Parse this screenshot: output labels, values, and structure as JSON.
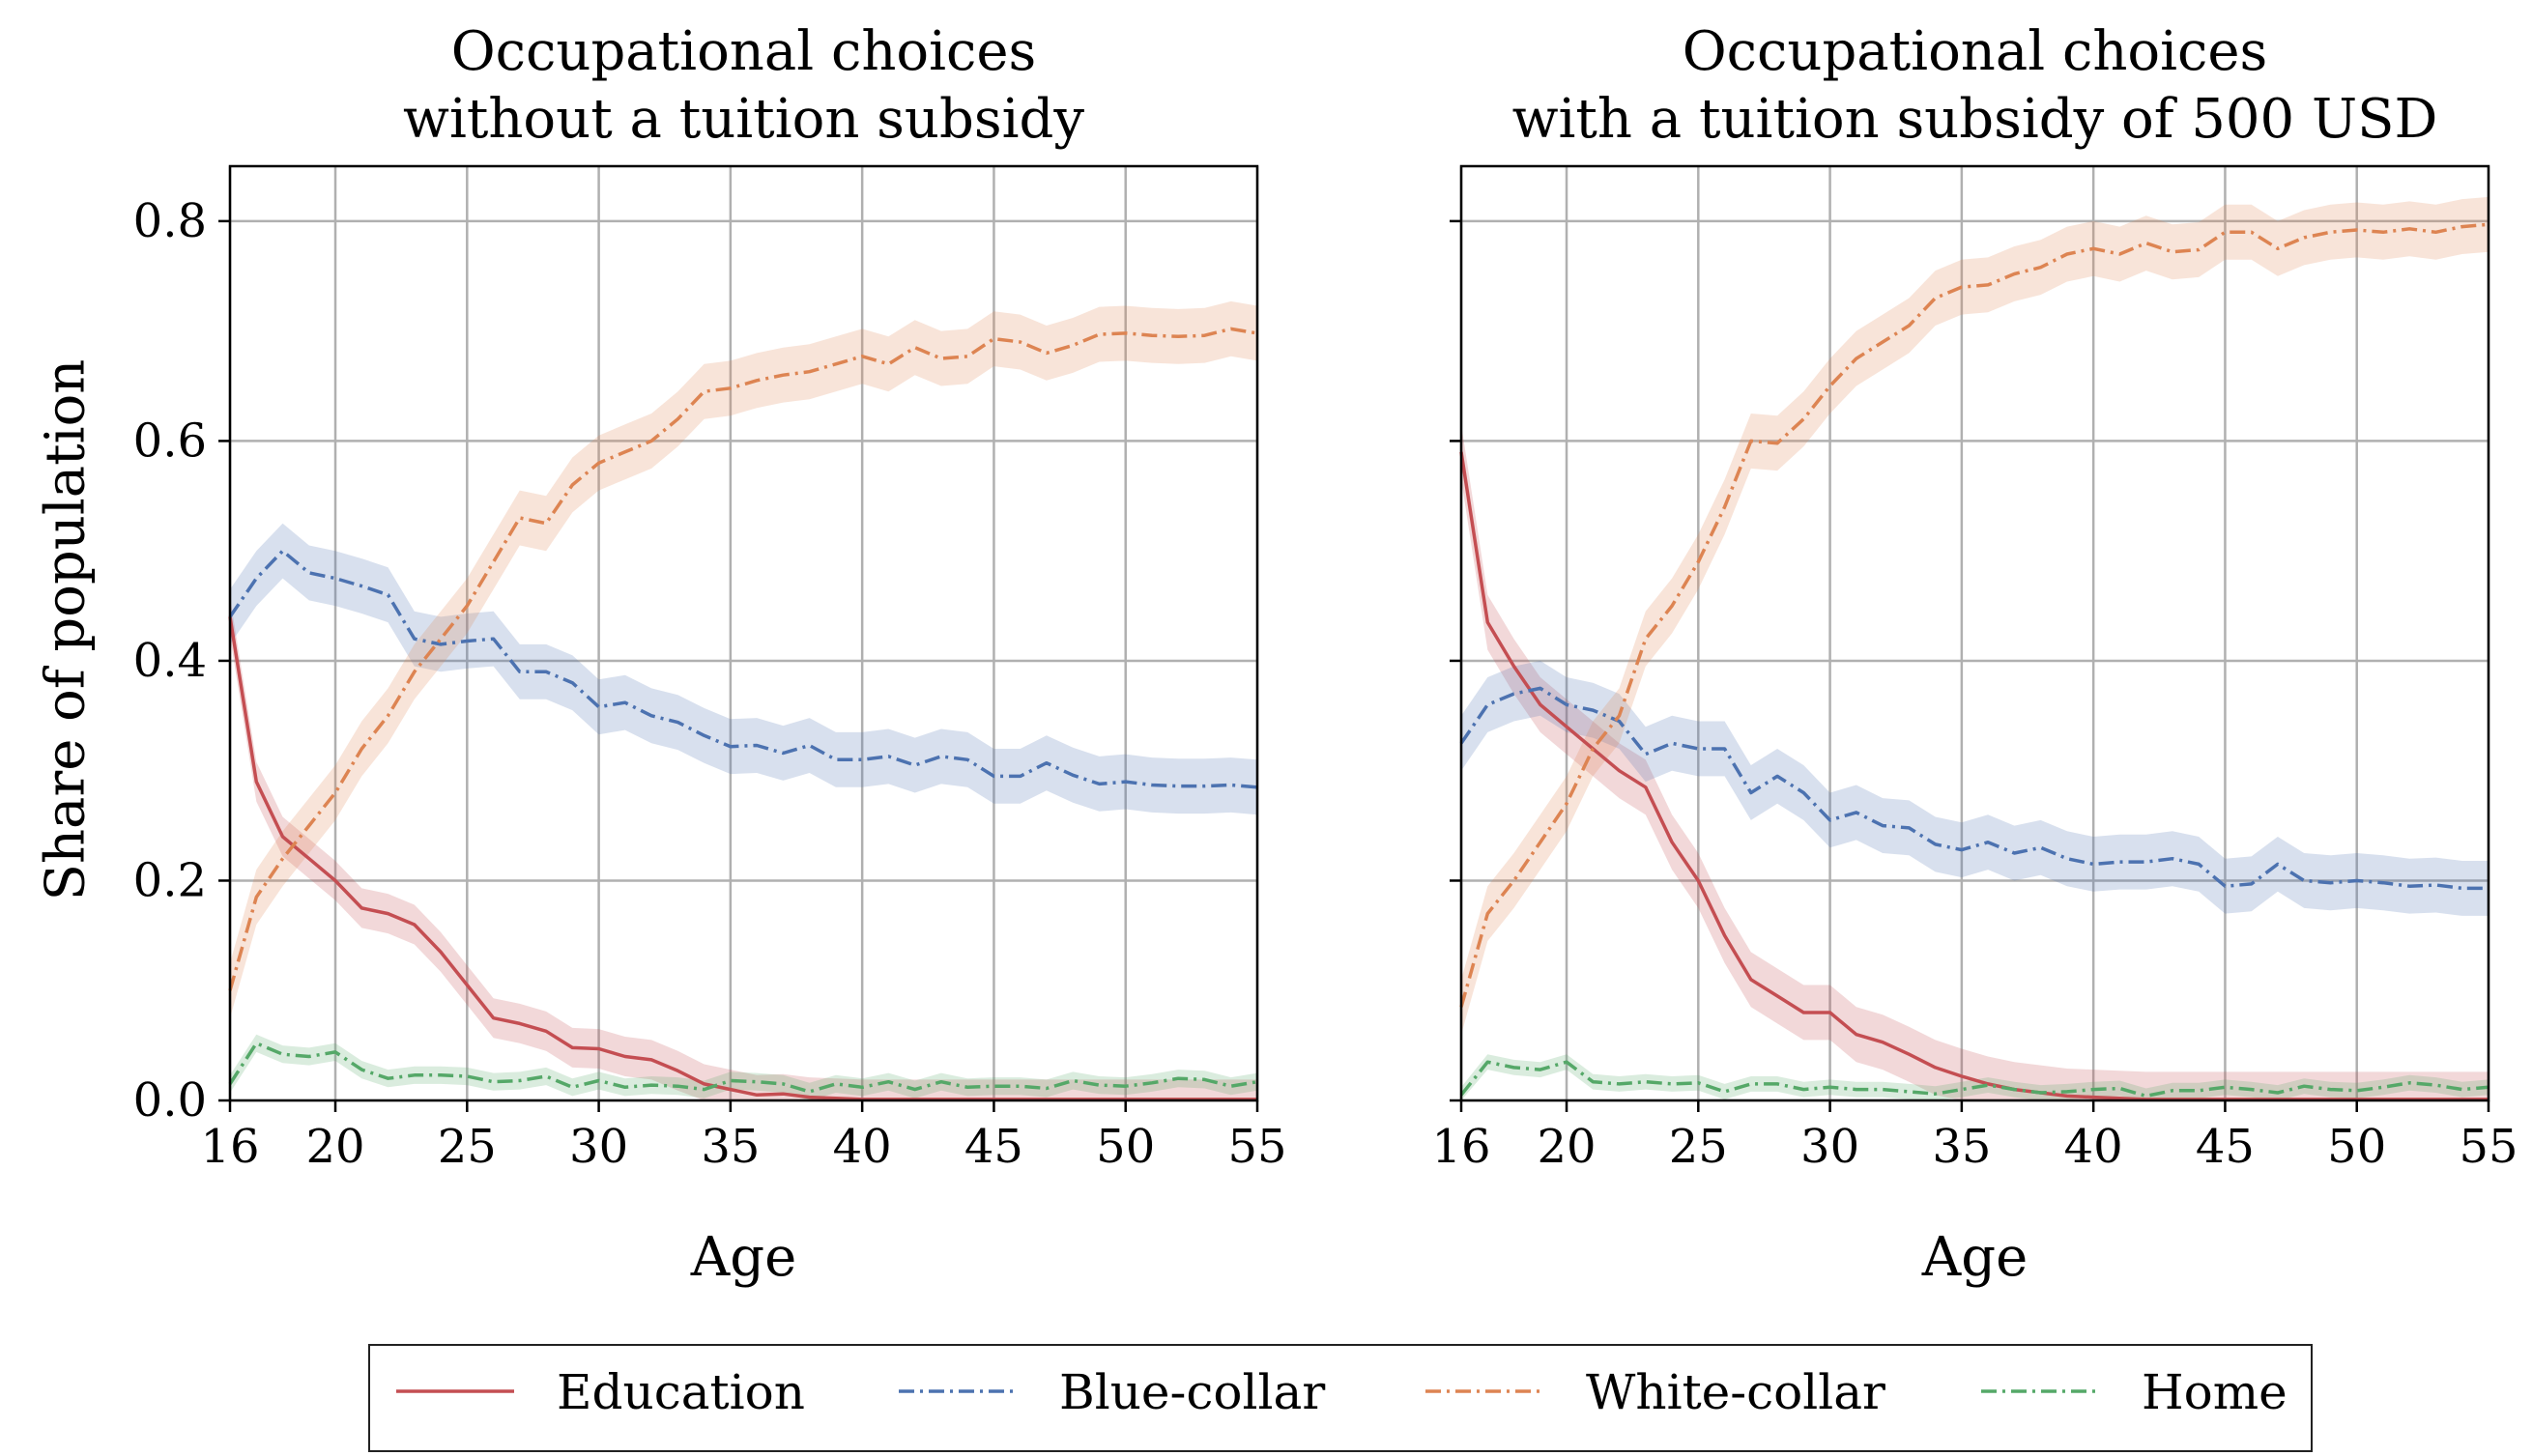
{
  "chart_data": [
    {
      "type": "line",
      "title": "Occupational choices\nwithout a tuition subsidy",
      "xlabel": "Age",
      "ylabel": "Share of population",
      "xlim": [
        16,
        55
      ],
      "ylim": [
        0,
        0.85
      ],
      "xticks": [
        16,
        20,
        25,
        30,
        35,
        40,
        45,
        50,
        55
      ],
      "yticks": [
        0.0,
        0.2,
        0.4,
        0.6,
        0.8
      ],
      "grid": true,
      "x": [
        16,
        17,
        18,
        19,
        20,
        21,
        22,
        23,
        24,
        25,
        26,
        27,
        28,
        29,
        30,
        31,
        32,
        33,
        34,
        35,
        36,
        37,
        38,
        39,
        40,
        41,
        42,
        43,
        44,
        45,
        46,
        47,
        48,
        49,
        50,
        51,
        52,
        53,
        54,
        55
      ],
      "series": [
        {
          "name": "Education",
          "color": "#c44e52",
          "style": "solid",
          "values": [
            0.44,
            0.29,
            0.24,
            0.22,
            0.2,
            0.175,
            0.17,
            0.16,
            0.135,
            0.105,
            0.075,
            0.07,
            0.063,
            0.048,
            0.047,
            0.04,
            0.037,
            0.027,
            0.015,
            0.01,
            0.005,
            0.006,
            0.003,
            0.002,
            0.001,
            0.001,
            0.001,
            0.001,
            0.001,
            0.001,
            0.001,
            0.001,
            0.001,
            0.001,
            0.001,
            0.001,
            0.001,
            0.001,
            0.001,
            0.001
          ],
          "band": 0.018
        },
        {
          "name": "Blue-collar",
          "color": "#4c72b0",
          "style": "dashdot",
          "values": [
            0.44,
            0.475,
            0.5,
            0.48,
            0.475,
            0.468,
            0.46,
            0.42,
            0.415,
            0.418,
            0.42,
            0.39,
            0.39,
            0.38,
            0.358,
            0.362,
            0.35,
            0.344,
            0.332,
            0.322,
            0.323,
            0.316,
            0.323,
            0.31,
            0.31,
            0.313,
            0.305,
            0.313,
            0.31,
            0.295,
            0.295,
            0.307,
            0.296,
            0.288,
            0.29,
            0.287,
            0.286,
            0.286,
            0.287,
            0.285
          ],
          "band": 0.025
        },
        {
          "name": "White-collar",
          "color": "#dd8452",
          "style": "dashdot",
          "values": [
            0.1,
            0.185,
            0.22,
            0.25,
            0.28,
            0.32,
            0.35,
            0.39,
            0.42,
            0.45,
            0.49,
            0.53,
            0.525,
            0.56,
            0.58,
            0.59,
            0.6,
            0.62,
            0.645,
            0.648,
            0.655,
            0.66,
            0.663,
            0.67,
            0.677,
            0.67,
            0.685,
            0.675,
            0.677,
            0.693,
            0.69,
            0.68,
            0.687,
            0.697,
            0.698,
            0.696,
            0.695,
            0.696,
            0.702,
            0.698
          ],
          "band": 0.025
        },
        {
          "name": "Home",
          "color": "#55a868",
          "style": "dashdot",
          "values": [
            0.015,
            0.052,
            0.042,
            0.04,
            0.044,
            0.028,
            0.02,
            0.023,
            0.023,
            0.022,
            0.017,
            0.018,
            0.022,
            0.012,
            0.018,
            0.012,
            0.014,
            0.013,
            0.01,
            0.018,
            0.017,
            0.015,
            0.008,
            0.015,
            0.012,
            0.017,
            0.01,
            0.017,
            0.012,
            0.013,
            0.013,
            0.011,
            0.018,
            0.014,
            0.013,
            0.016,
            0.02,
            0.019,
            0.013,
            0.017
          ],
          "band": 0.008
        }
      ]
    },
    {
      "type": "line",
      "title": "Occupational choices\nwith a tuition subsidy of 500 USD",
      "xlabel": "Age",
      "ylabel": "",
      "xlim": [
        16,
        55
      ],
      "ylim": [
        0,
        0.85
      ],
      "xticks": [
        16,
        20,
        25,
        30,
        35,
        40,
        45,
        50,
        55
      ],
      "yticks": [
        0.0,
        0.2,
        0.4,
        0.6,
        0.8
      ],
      "grid": true,
      "x": [
        16,
        17,
        18,
        19,
        20,
        21,
        22,
        23,
        24,
        25,
        26,
        27,
        28,
        29,
        30,
        31,
        32,
        33,
        34,
        35,
        36,
        37,
        38,
        39,
        40,
        41,
        42,
        43,
        44,
        45,
        46,
        47,
        48,
        49,
        50,
        51,
        52,
        53,
        54,
        55
      ],
      "series": [
        {
          "name": "Education",
          "color": "#c44e52",
          "style": "solid",
          "values": [
            0.59,
            0.435,
            0.395,
            0.36,
            0.34,
            0.32,
            0.3,
            0.285,
            0.235,
            0.2,
            0.15,
            0.11,
            0.095,
            0.08,
            0.08,
            0.06,
            0.053,
            0.042,
            0.03,
            0.022,
            0.015,
            0.01,
            0.007,
            0.004,
            0.003,
            0.002,
            0.001,
            0.001,
            0.001,
            0.001,
            0.001,
            0.001,
            0.001,
            0.001,
            0.001,
            0.001,
            0.001,
            0.001,
            0.001,
            0.001
          ],
          "band": 0.025
        },
        {
          "name": "Blue-collar",
          "color": "#4c72b0",
          "style": "dashdot",
          "values": [
            0.325,
            0.36,
            0.37,
            0.375,
            0.36,
            0.355,
            0.345,
            0.315,
            0.325,
            0.32,
            0.32,
            0.28,
            0.295,
            0.28,
            0.255,
            0.262,
            0.25,
            0.248,
            0.233,
            0.228,
            0.235,
            0.225,
            0.23,
            0.22,
            0.215,
            0.217,
            0.217,
            0.22,
            0.215,
            0.195,
            0.197,
            0.215,
            0.2,
            0.198,
            0.2,
            0.198,
            0.195,
            0.196,
            0.193,
            0.193
          ],
          "band": 0.025
        },
        {
          "name": "White-collar",
          "color": "#dd8452",
          "style": "dashdot",
          "values": [
            0.085,
            0.17,
            0.2,
            0.235,
            0.27,
            0.32,
            0.35,
            0.42,
            0.45,
            0.49,
            0.54,
            0.6,
            0.598,
            0.62,
            0.65,
            0.675,
            0.69,
            0.705,
            0.73,
            0.74,
            0.742,
            0.752,
            0.758,
            0.77,
            0.775,
            0.77,
            0.78,
            0.772,
            0.774,
            0.79,
            0.79,
            0.775,
            0.785,
            0.79,
            0.792,
            0.79,
            0.793,
            0.79,
            0.795,
            0.797
          ],
          "band": 0.025
        },
        {
          "name": "Home",
          "color": "#55a868",
          "style": "dashdot",
          "values": [
            0.005,
            0.035,
            0.03,
            0.028,
            0.035,
            0.017,
            0.015,
            0.017,
            0.015,
            0.016,
            0.008,
            0.015,
            0.015,
            0.01,
            0.012,
            0.01,
            0.01,
            0.008,
            0.006,
            0.01,
            0.014,
            0.01,
            0.007,
            0.008,
            0.01,
            0.011,
            0.004,
            0.009,
            0.009,
            0.012,
            0.01,
            0.007,
            0.013,
            0.01,
            0.009,
            0.012,
            0.016,
            0.014,
            0.01,
            0.012
          ],
          "band": 0.007
        }
      ]
    }
  ],
  "legend": {
    "placement": "bottom-center",
    "items": [
      {
        "label": "Education",
        "color": "#c44e52",
        "style": "solid"
      },
      {
        "label": "Blue-collar",
        "color": "#4c72b0",
        "style": "dashdot"
      },
      {
        "label": "White-collar",
        "color": "#dd8452",
        "style": "dashdot"
      },
      {
        "label": "Home",
        "color": "#55a868",
        "style": "dashdot"
      }
    ]
  }
}
